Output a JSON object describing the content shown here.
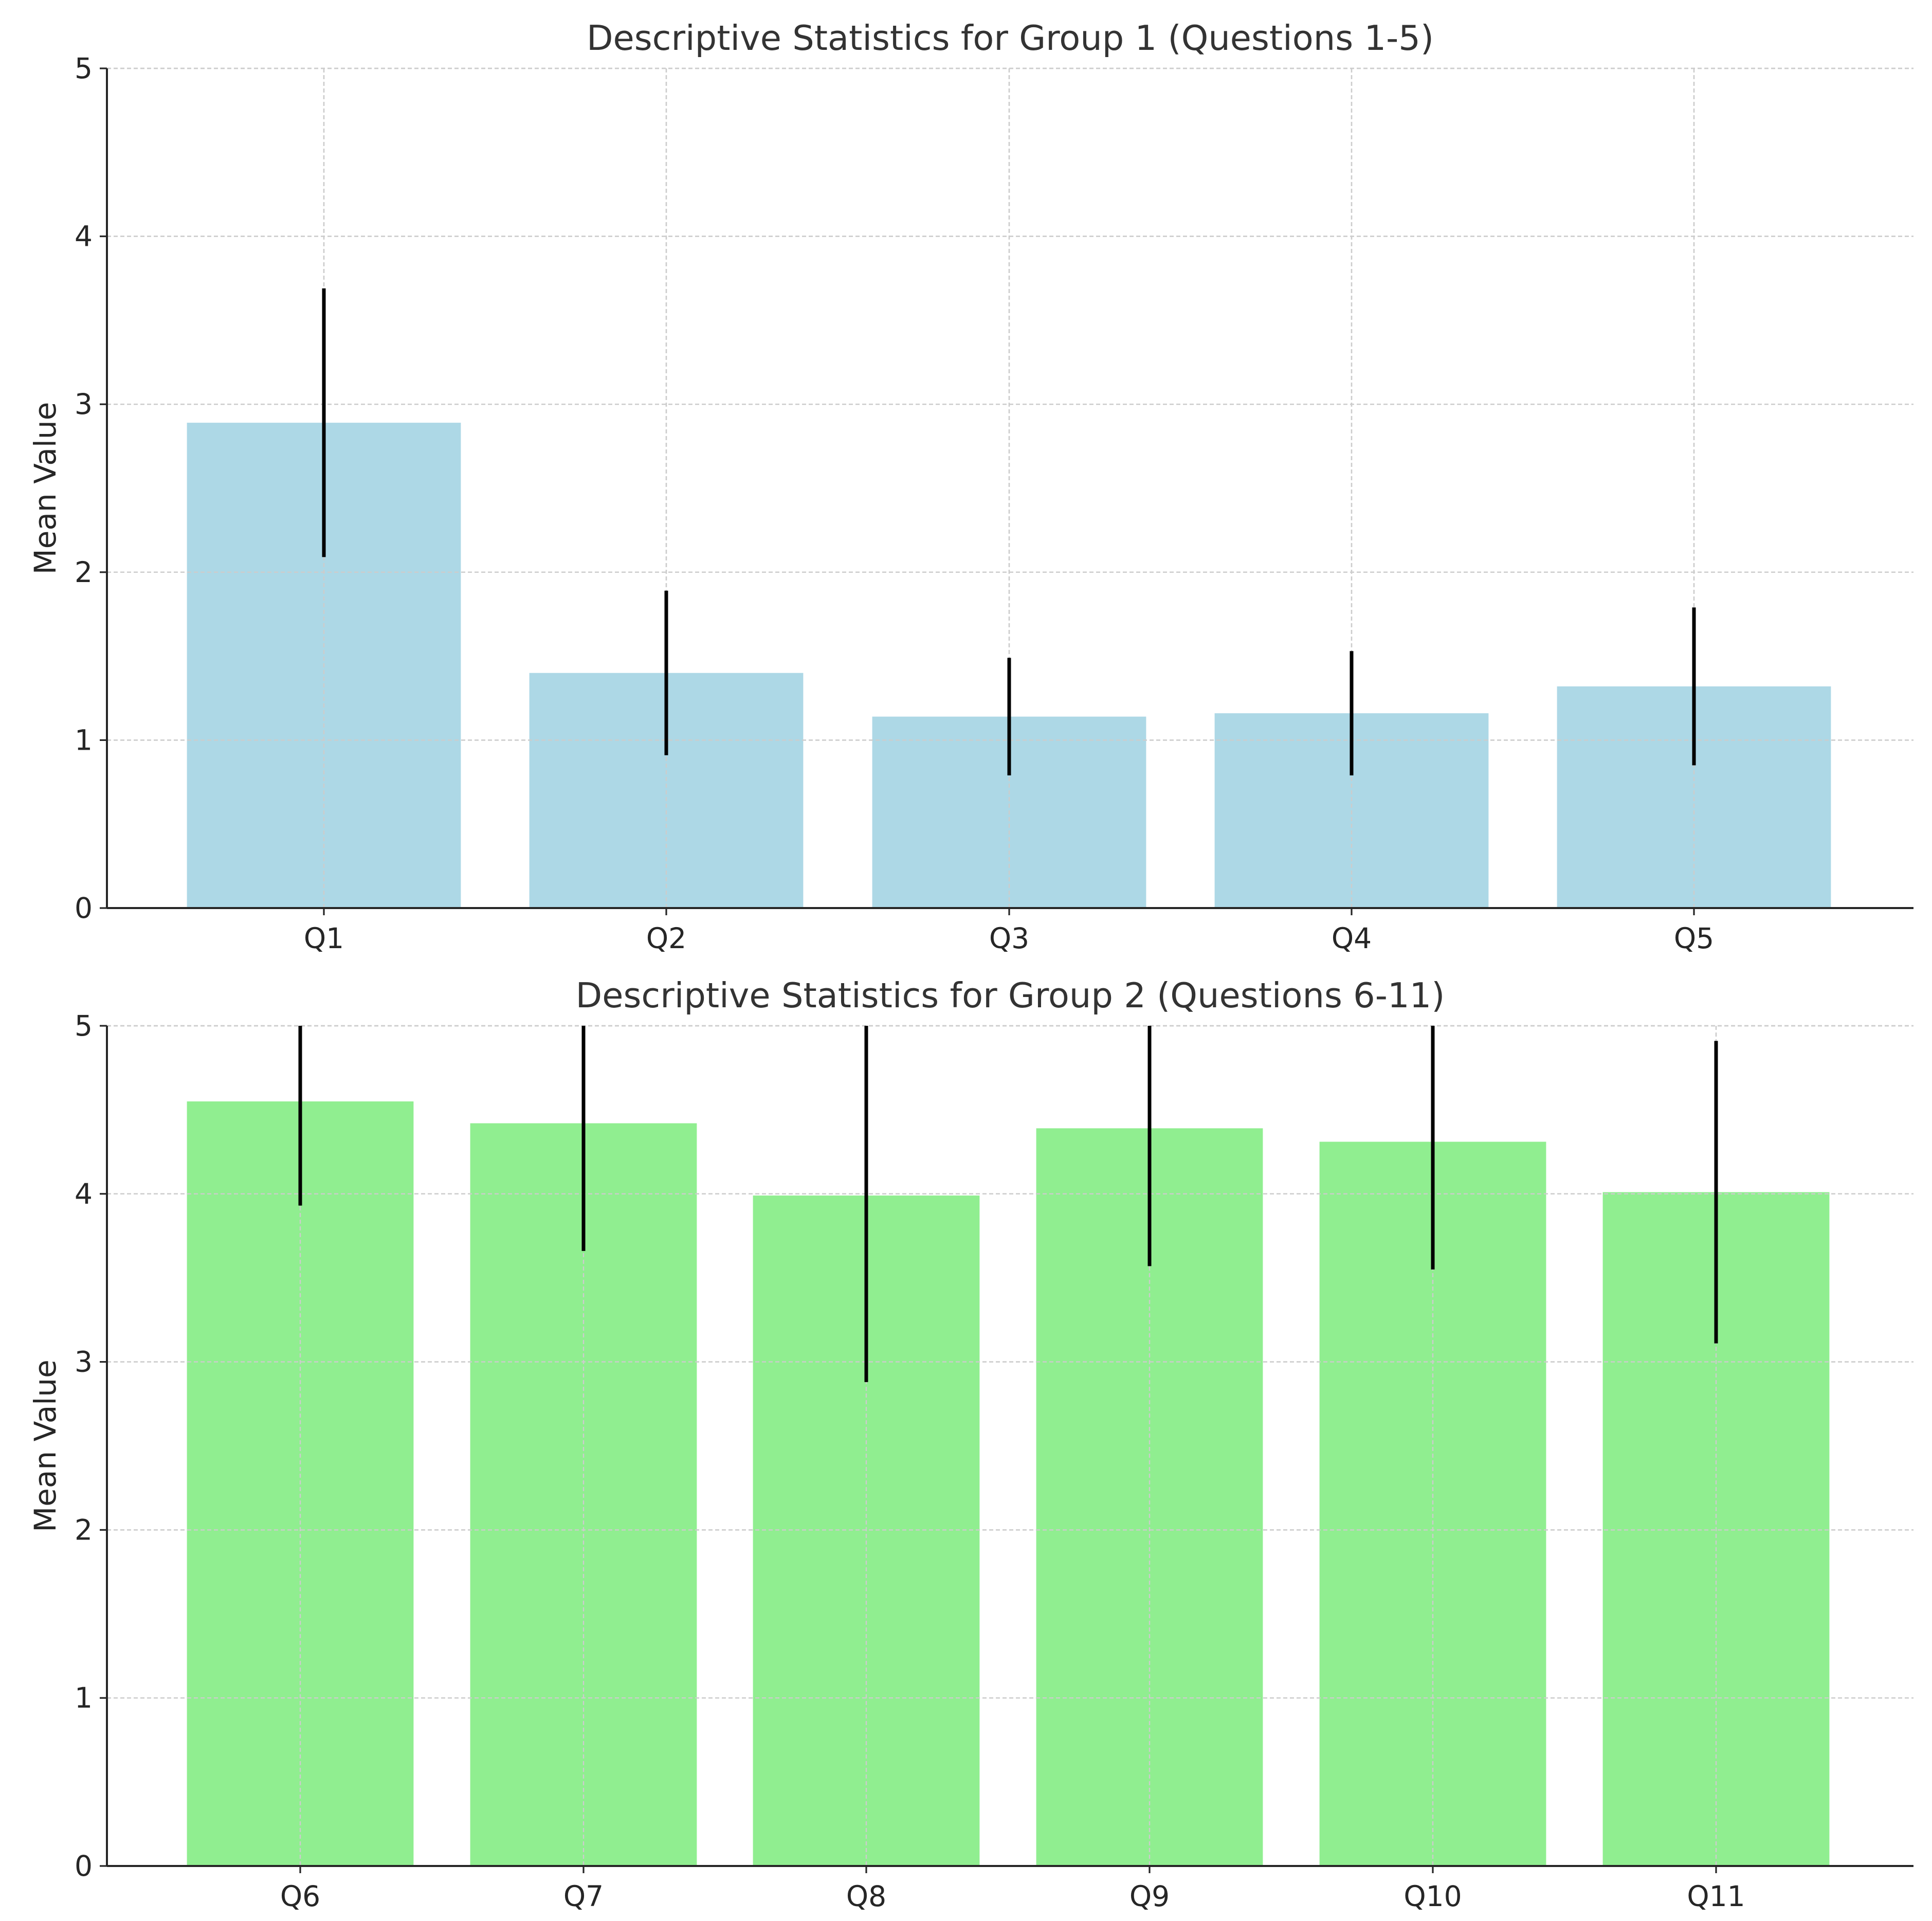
{
  "chart_data": [
    {
      "type": "bar",
      "title": "Descriptive Statistics for Group 1 (Questions 1-5)",
      "xlabel": "",
      "ylabel": "Mean Value",
      "ylim": [
        0,
        5
      ],
      "yticks": [
        "0",
        "1",
        "2",
        "3",
        "4",
        "5"
      ],
      "grid": true,
      "color": "#add8e6",
      "categories": [
        "Q1",
        "Q2",
        "Q3",
        "Q4",
        "Q5"
      ],
      "values": [
        2.89,
        1.4,
        1.14,
        1.16,
        1.32
      ],
      "errors": [
        0.8,
        0.49,
        0.35,
        0.37,
        0.47
      ]
    },
    {
      "type": "bar",
      "title": "Descriptive Statistics for Group 2 (Questions 6-11)",
      "xlabel": "",
      "ylabel": "Mean Value",
      "ylim": [
        0,
        5
      ],
      "yticks": [
        "0",
        "1",
        "2",
        "3",
        "4",
        "5"
      ],
      "grid": true,
      "color": "#90ee90",
      "categories": [
        "Q6",
        "Q7",
        "Q8",
        "Q9",
        "Q10",
        "Q11"
      ],
      "values": [
        4.55,
        4.42,
        3.99,
        4.39,
        4.31,
        4.01
      ],
      "errors": [
        0.62,
        0.76,
        1.11,
        0.82,
        0.76,
        0.9
      ]
    }
  ]
}
